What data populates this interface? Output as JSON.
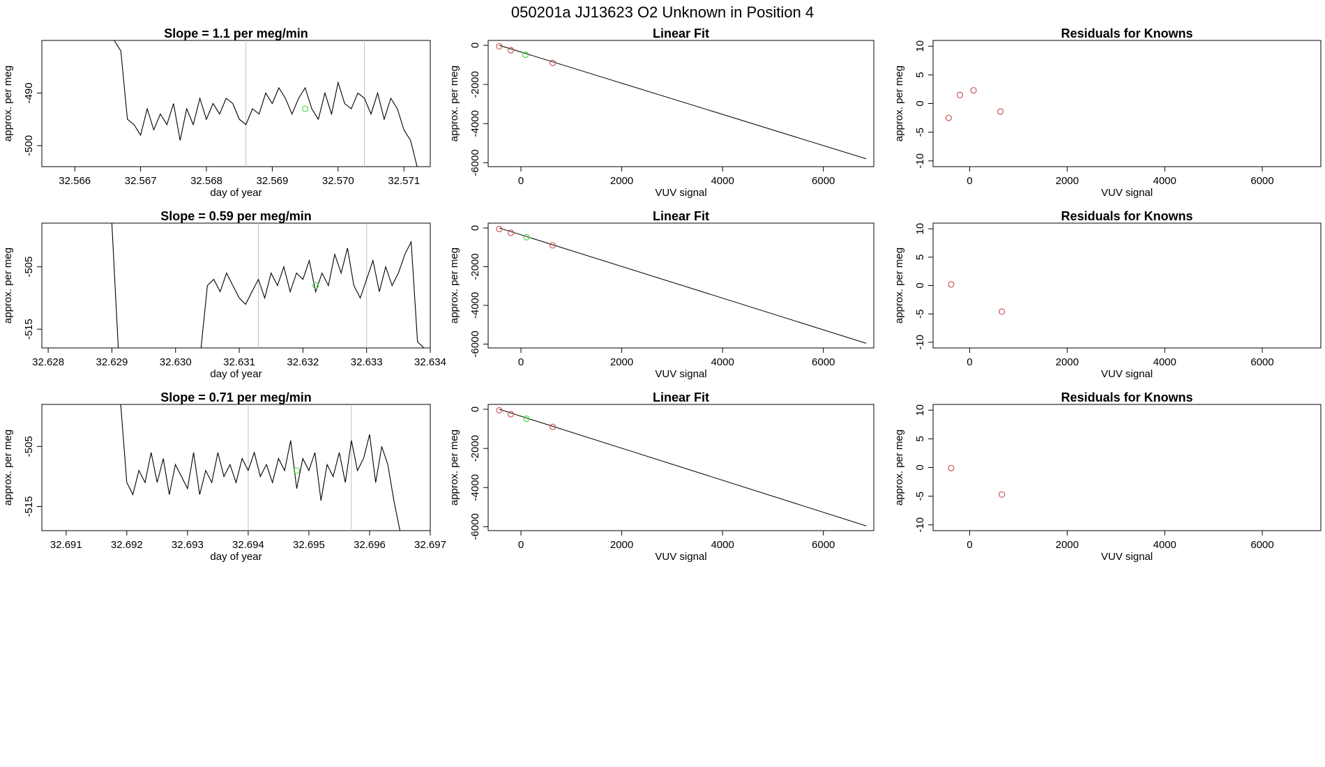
{
  "page": {
    "title": "050201a      JJ13623   O2 Unknown in Position  4",
    "colors": {
      "known": "#cc5555",
      "unknown": "#44dd44",
      "line": "#000000",
      "marker": "#c0c0c0"
    }
  },
  "chart_data": [
    {
      "id": "ts1",
      "type": "line",
      "title": "Slope =  1.1  per meg/min",
      "xlabel": "day of year",
      "ylabel": "approx. per meg",
      "xlim": [
        32.5655,
        32.5714
      ],
      "ylim": [
        -504,
        -480
      ],
      "x_ticks": [
        "32.566",
        "32.567",
        "32.568",
        "32.569",
        "32.570",
        "32.571"
      ],
      "y_ticks": [
        "-490",
        "-500"
      ],
      "vlines": [
        32.5686,
        32.5704
      ],
      "unknown_point": {
        "x": 32.5695,
        "y": -493
      },
      "x": [
        32.5666,
        32.5667,
        32.5668,
        32.5669,
        32.567,
        32.5671,
        32.5672,
        32.5673,
        32.5674,
        32.5675,
        32.5676,
        32.5677,
        32.5678,
        32.5679,
        32.568,
        32.5681,
        32.5682,
        32.5683,
        32.5684,
        32.5685,
        32.5686,
        32.5687,
        32.5688,
        32.5689,
        32.569,
        32.5691,
        32.5692,
        32.5693,
        32.5694,
        32.5695,
        32.5696,
        32.5697,
        32.5698,
        32.5699,
        32.57,
        32.5701,
        32.5702,
        32.5703,
        32.5704,
        32.5705,
        32.5706,
        32.5707,
        32.5708,
        32.5709,
        32.571,
        32.5711,
        32.5712
      ],
      "y": [
        -480,
        -482,
        -495,
        -496,
        -498,
        -493,
        -497,
        -494,
        -496,
        -492,
        -499,
        -493,
        -496,
        -491,
        -495,
        -492,
        -494,
        -491,
        -492,
        -495,
        -496,
        -493,
        -494,
        -490,
        -492,
        -489,
        -491,
        -494,
        -491,
        -489,
        -493,
        -495,
        -490,
        -494,
        -488,
        -492,
        -493,
        -490,
        -491,
        -494,
        -490,
        -495,
        -491,
        -493,
        -497,
        -499,
        -504
      ]
    },
    {
      "id": "fit1",
      "type": "scatter",
      "title": "Linear Fit",
      "xlabel": "VUV signal",
      "ylabel": "approx. per meg",
      "xlim": [
        -650,
        7000
      ],
      "ylim": [
        -6200,
        250
      ],
      "x_ticks": [
        0,
        2000,
        4000,
        6000
      ],
      "y_ticks": [
        0,
        -2000,
        -4000,
        -6000
      ],
      "line": {
        "x": [
          -430,
          6850
        ],
        "y": [
          0,
          -5800
        ]
      },
      "knowns": {
        "x": [
          -430,
          -200,
          630
        ],
        "y": [
          -50,
          -250,
          -900
        ]
      },
      "unknown": {
        "x": 90,
        "y": -480
      }
    },
    {
      "id": "res1",
      "type": "scatter",
      "title": "Residuals for Knowns",
      "xlabel": "VUV signal",
      "ylabel": "approx. per meg",
      "xlim": [
        -750,
        7200
      ],
      "ylim": [
        -11,
        11
      ],
      "x_ticks": [
        0,
        2000,
        4000,
        6000
      ],
      "y_ticks": [
        10,
        5,
        0,
        -5,
        -10
      ],
      "x": [
        -430,
        -200,
        80,
        630
      ],
      "y": [
        -2.5,
        1.5,
        2.3,
        -1.4
      ]
    },
    {
      "id": "ts2",
      "type": "line",
      "title": "Slope =  0.59  per meg/min",
      "xlabel": "day of year",
      "ylabel": "approx. per meg",
      "xlim": [
        32.6279,
        32.634
      ],
      "ylim": [
        -518,
        -498
      ],
      "x_ticks": [
        "32.628",
        "32.629",
        "32.630",
        "32.631",
        "32.632",
        "32.633",
        "32.634"
      ],
      "y_ticks": [
        "-505",
        "-515"
      ],
      "vlines": [
        32.6313,
        32.633
      ],
      "unknown_point": {
        "x": 32.6322,
        "y": -508
      },
      "x": [
        32.629,
        32.6291,
        32.6292,
        32.6293,
        32.6294,
        32.6295,
        32.6296,
        32.6297,
        32.6298,
        32.6299,
        32.63,
        32.6301,
        32.6302,
        32.6303,
        32.6304,
        32.6305,
        32.6306,
        32.6307,
        32.6308,
        32.6309,
        32.631,
        32.6311,
        32.6312,
        32.6313,
        32.6314,
        32.6315,
        32.6316,
        32.6317,
        32.6318,
        32.6319,
        32.632,
        32.6321,
        32.6322,
        32.6323,
        32.6324,
        32.6325,
        32.6326,
        32.6327,
        32.6328,
        32.6329,
        32.633,
        32.6331,
        32.6332,
        32.6333,
        32.6334,
        32.6335,
        32.6336,
        32.6337,
        32.6338,
        32.6339
      ],
      "y": [
        -498,
        -518,
        -518,
        -518,
        -518,
        -518,
        -518,
        -518,
        -518,
        -518,
        -518,
        -518,
        -518,
        -518,
        -518,
        -508,
        -507,
        -509,
        -506,
        -508,
        -510,
        -511,
        -509,
        -507,
        -510,
        -506,
        -508,
        -505,
        -509,
        -506,
        -507,
        -504,
        -509,
        -506,
        -508,
        -503,
        -506,
        -502,
        -508,
        -510,
        -507,
        -504,
        -509,
        -505,
        -508,
        -506,
        -503,
        -501,
        -517,
        -518
      ]
    },
    {
      "id": "fit2",
      "type": "scatter",
      "title": "Linear Fit",
      "xlabel": "VUV signal",
      "ylabel": "approx. per meg",
      "xlim": [
        -650,
        7000
      ],
      "ylim": [
        -6200,
        250
      ],
      "x_ticks": [
        0,
        2000,
        4000,
        6000
      ],
      "y_ticks": [
        0,
        -2000,
        -4000,
        -6000
      ],
      "line": {
        "x": [
          -430,
          6850
        ],
        "y": [
          0,
          -5960
        ]
      },
      "knowns": {
        "x": [
          -430,
          -200,
          630
        ],
        "y": [
          -50,
          -250,
          -900
        ]
      },
      "unknown": {
        "x": 110,
        "y": -480
      }
    },
    {
      "id": "res2",
      "type": "scatter",
      "title": "Residuals for Knowns",
      "xlabel": "VUV signal",
      "ylabel": "approx. per meg",
      "xlim": [
        -750,
        7200
      ],
      "ylim": [
        -11,
        11
      ],
      "x_ticks": [
        0,
        2000,
        4000,
        6000
      ],
      "y_ticks": [
        10,
        5,
        0,
        -5,
        -10
      ],
      "x": [
        -380,
        660
      ],
      "y": [
        0.2,
        -4.6
      ]
    },
    {
      "id": "ts3",
      "type": "line",
      "title": "Slope =  0.71  per meg/min",
      "xlabel": "day of year",
      "ylabel": "approx. per meg",
      "xlim": [
        32.6906,
        32.697
      ],
      "ylim": [
        -519,
        -498
      ],
      "x_ticks": [
        "32.691",
        "32.692",
        "32.693",
        "32.694",
        "32.695",
        "32.696",
        "32.697"
      ],
      "y_ticks": [
        "-505",
        "-515"
      ],
      "vlines": [
        32.694,
        32.6957
      ],
      "unknown_point": {
        "x": 32.6948,
        "y": -509
      },
      "x": [
        32.6919,
        32.692,
        32.6921,
        32.6922,
        32.6923,
        32.6924,
        32.6925,
        32.6926,
        32.6927,
        32.6928,
        32.6929,
        32.693,
        32.6931,
        32.6932,
        32.6933,
        32.6934,
        32.6935,
        32.6936,
        32.6937,
        32.6938,
        32.6939,
        32.694,
        32.6941,
        32.6942,
        32.6943,
        32.6944,
        32.6945,
        32.6946,
        32.6947,
        32.6948,
        32.6949,
        32.695,
        32.6951,
        32.6952,
        32.6953,
        32.6954,
        32.6955,
        32.6956,
        32.6957,
        32.6958,
        32.6959,
        32.696,
        32.6961,
        32.6962,
        32.6963,
        32.6964,
        32.6965
      ],
      "y": [
        -498,
        -511,
        -513,
        -509,
        -511,
        -506,
        -511,
        -507,
        -513,
        -508,
        -510,
        -512,
        -506,
        -513,
        -509,
        -511,
        -506,
        -510,
        -508,
        -511,
        -507,
        -509,
        -506,
        -510,
        -508,
        -511,
        -507,
        -509,
        -504,
        -512,
        -507,
        -509,
        -506,
        -514,
        -508,
        -510,
        -506,
        -511,
        -504,
        -509,
        -507,
        -503,
        -511,
        -505,
        -508,
        -514,
        -519
      ]
    },
    {
      "id": "fit3",
      "type": "scatter",
      "title": "Linear Fit",
      "xlabel": "VUV signal",
      "ylabel": "approx. per meg",
      "xlim": [
        -650,
        7000
      ],
      "ylim": [
        -6200,
        250
      ],
      "x_ticks": [
        0,
        2000,
        4000,
        6000
      ],
      "y_ticks": [
        0,
        -2000,
        -4000,
        -6000
      ],
      "line": {
        "x": [
          -430,
          6850
        ],
        "y": [
          0,
          -5960
        ]
      },
      "knowns": {
        "x": [
          -430,
          -200,
          630
        ],
        "y": [
          -50,
          -250,
          -900
        ]
      },
      "unknown": {
        "x": 110,
        "y": -480
      }
    },
    {
      "id": "res3",
      "type": "scatter",
      "title": "Residuals for Knowns",
      "xlabel": "VUV signal",
      "ylabel": "approx. per meg",
      "xlim": [
        -750,
        7200
      ],
      "ylim": [
        -11,
        11
      ],
      "x_ticks": [
        0,
        2000,
        4000,
        6000
      ],
      "y_ticks": [
        10,
        5,
        0,
        -5,
        -10
      ],
      "x": [
        -380,
        660
      ],
      "y": [
        -0.1,
        -4.7
      ]
    }
  ]
}
